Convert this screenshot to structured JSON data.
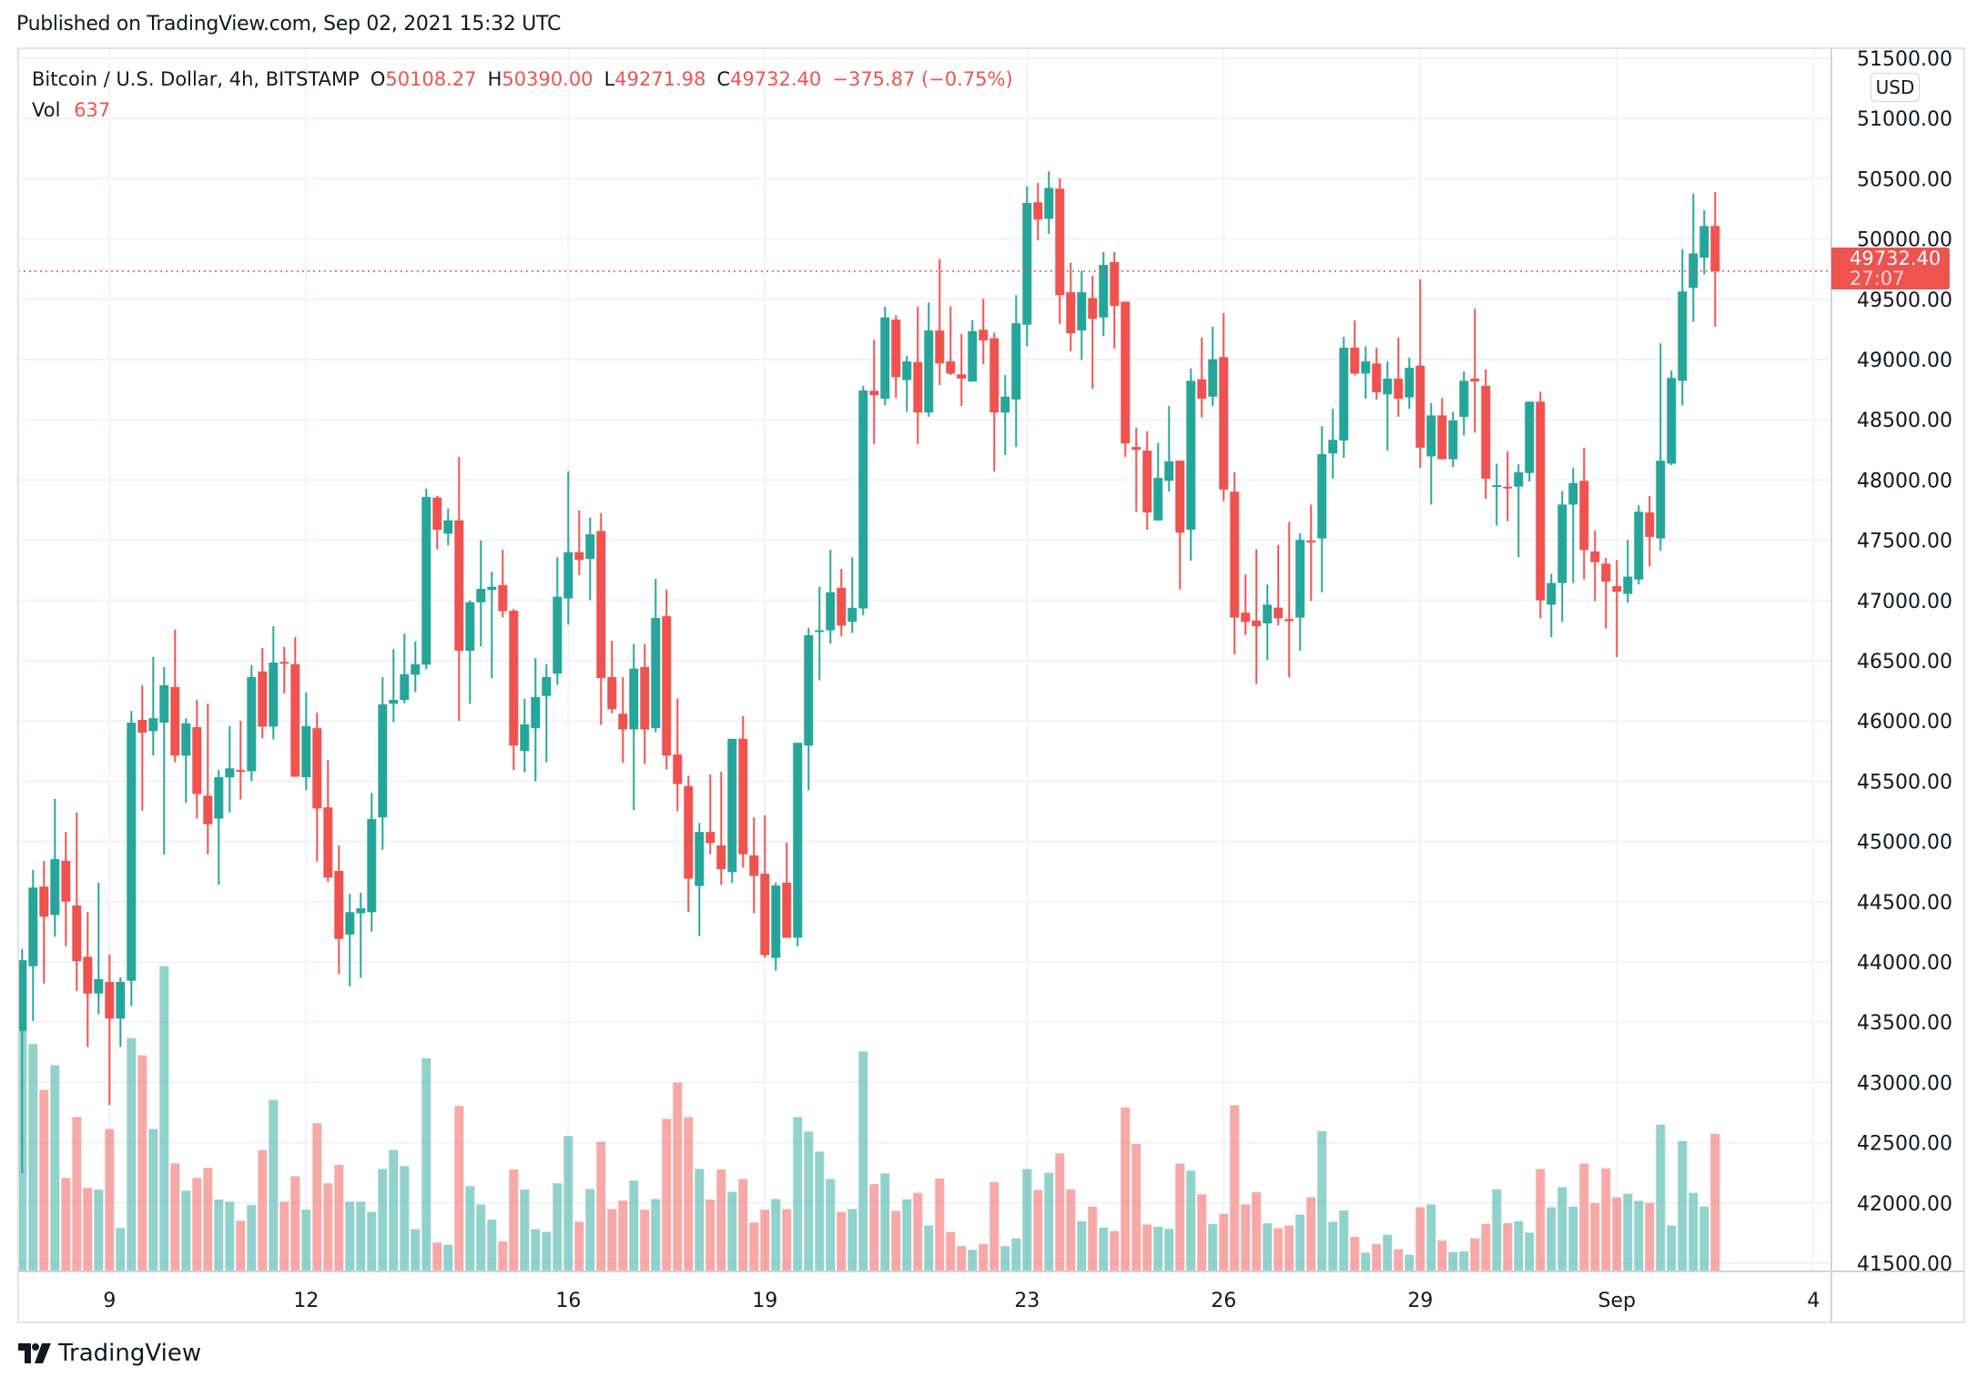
{
  "published": "Published on TradingView.com, Sep 02, 2021 15:32 UTC",
  "legend": {
    "symbol": "Bitcoin / U.S. Dollar, 4h, BITSTAMP",
    "o_label": "O",
    "o_value": "50108.27",
    "h_label": "H",
    "h_value": "50390.00",
    "l_label": "L",
    "l_value": "49271.98",
    "c_label": "C",
    "c_value": "49732.40",
    "change": "−375.87 (−0.75%)",
    "vol_label": "Vol",
    "vol_value": "637"
  },
  "price_axis": {
    "currency": "USD",
    "last_price": "49732.40",
    "countdown": "27:07"
  },
  "footer": {
    "logo_text": "TradingView"
  },
  "colors": {
    "up": "#26a69a",
    "down": "#ef5350",
    "grid": "#f0f3fa",
    "border": "#e0e3eb"
  },
  "chart_data": {
    "type": "candlestick",
    "interval": "4h",
    "ylim": [
      41500,
      51500
    ],
    "y_ticks": [
      "41500.00",
      "42000.00",
      "42500.00",
      "43000.00",
      "43500.00",
      "44000.00",
      "44500.00",
      "45000.00",
      "45500.00",
      "46000.00",
      "46500.00",
      "47000.00",
      "47500.00",
      "48000.00",
      "48500.00",
      "49000.00",
      "49500.00",
      "50000.00",
      "50500.00",
      "51000.00",
      "51500.00"
    ],
    "x_ticks": [
      {
        "label": "9",
        "bar": 8
      },
      {
        "label": "12",
        "bar": 26
      },
      {
        "label": "16",
        "bar": 50
      },
      {
        "label": "19",
        "bar": 68
      },
      {
        "label": "23",
        "bar": 92
      },
      {
        "label": "26",
        "bar": 110
      },
      {
        "label": "29",
        "bar": 128
      },
      {
        "label": "Sep",
        "bar": 146
      },
      {
        "label": "4",
        "bar": 164
      }
    ],
    "grid": true,
    "last_price_line": 49732.4,
    "columns": [
      "open",
      "high",
      "low",
      "close",
      "volume"
    ],
    "ohlcv": [
      [
        43428,
        44108,
        42249,
        44015,
        1117
      ],
      [
        43965,
        44765,
        43511,
        44617,
        1053
      ],
      [
        44626,
        44839,
        43821,
        44376,
        841
      ],
      [
        44390,
        45352,
        44210,
        44853,
        955
      ],
      [
        44839,
        45079,
        44131,
        44501,
        433
      ],
      [
        44469,
        45241,
        43761,
        44006,
        715
      ],
      [
        44043,
        44413,
        43294,
        43738,
        387
      ],
      [
        43738,
        44658,
        43567,
        43858,
        379
      ],
      [
        43835,
        44062,
        42813,
        43530,
        660
      ],
      [
        43530,
        43872,
        43294,
        43835,
        201
      ],
      [
        43844,
        46083,
        43636,
        45986,
        1081
      ],
      [
        46009,
        46296,
        45255,
        45903,
        1001
      ],
      [
        45916,
        46532,
        45713,
        46023,
        660
      ],
      [
        45986,
        46448,
        44890,
        46296,
        1414
      ],
      [
        46282,
        46758,
        45657,
        45713,
        500
      ],
      [
        45713,
        46023,
        45320,
        45981,
        374
      ],
      [
        45949,
        46175,
        45190,
        45394,
        433
      ],
      [
        45380,
        46143,
        44894,
        45144,
        480
      ],
      [
        45190,
        45593,
        44640,
        45533,
        333
      ],
      [
        45533,
        45958,
        45241,
        45607,
        323
      ],
      [
        45593,
        46000,
        45348,
        45583,
        235
      ],
      [
        45583,
        46462,
        45500,
        46365,
        307
      ],
      [
        46411,
        46606,
        45856,
        45953,
        562
      ],
      [
        45953,
        46786,
        45847,
        46485,
        795
      ],
      [
        46490,
        46615,
        46226,
        46476,
        323
      ],
      [
        46471,
        46698,
        45537,
        45537,
        441
      ],
      [
        45533,
        46236,
        45426,
        45958,
        286
      ],
      [
        45940,
        46069,
        44834,
        45274,
        686
      ],
      [
        45283,
        45676,
        44663,
        44700,
        408
      ],
      [
        44756,
        44968,
        43900,
        44191,
        493
      ],
      [
        44228,
        44566,
        43798,
        44413,
        323
      ],
      [
        44404,
        44575,
        43868,
        44446,
        323
      ],
      [
        44413,
        45403,
        44251,
        45186,
        276
      ],
      [
        45200,
        46365,
        44931,
        46138,
        475
      ],
      [
        46143,
        46596,
        45990,
        46175,
        562
      ],
      [
        46175,
        46726,
        46148,
        46388,
        488
      ],
      [
        46384,
        46661,
        46240,
        46471,
        196
      ],
      [
        46467,
        47928,
        46430,
        47859,
        988
      ],
      [
        47854,
        47868,
        47424,
        47586,
        134
      ],
      [
        47554,
        47762,
        47457,
        47665,
        124
      ],
      [
        47665,
        48192,
        46000,
        46582,
        766
      ],
      [
        46582,
        46999,
        46143,
        46985,
        395
      ],
      [
        46985,
        47498,
        46619,
        47096,
        310
      ],
      [
        47087,
        47239,
        46356,
        47114,
        240
      ],
      [
        47128,
        47420,
        46860,
        46911,
        139
      ],
      [
        46915,
        46929,
        45593,
        45796,
        472
      ],
      [
        45750,
        46185,
        45574,
        45972,
        379
      ],
      [
        45940,
        46522,
        45500,
        46199,
        196
      ],
      [
        46208,
        46471,
        45657,
        46365,
        183
      ],
      [
        46393,
        47359,
        46300,
        47031,
        408
      ],
      [
        47017,
        48072,
        46800,
        47401,
        627
      ],
      [
        47401,
        47748,
        47211,
        47336,
        230
      ],
      [
        47345,
        47688,
        47003,
        47549,
        382
      ],
      [
        47577,
        47725,
        45967,
        46356,
        601
      ],
      [
        46365,
        46666,
        46064,
        46097,
        289
      ],
      [
        46060,
        46365,
        45653,
        45930,
        328
      ],
      [
        45930,
        46638,
        45260,
        46434,
        421
      ],
      [
        46448,
        46638,
        45644,
        45930,
        286
      ],
      [
        45940,
        47179,
        45907,
        46855,
        335
      ],
      [
        46869,
        47091,
        45597,
        45713,
        707
      ],
      [
        45722,
        46185,
        45250,
        45477,
        875
      ],
      [
        45459,
        45546,
        44413,
        44691,
        715
      ],
      [
        44631,
        45153,
        44214,
        45079,
        475
      ],
      [
        45079,
        45556,
        44894,
        44987,
        333
      ],
      [
        44968,
        45579,
        44640,
        44769,
        472
      ],
      [
        44746,
        45852,
        44654,
        45852,
        369
      ],
      [
        45852,
        46041,
        44783,
        44894,
        428
      ],
      [
        44885,
        45200,
        44404,
        44714,
        227
      ],
      [
        44732,
        45218,
        44034,
        44057,
        286
      ],
      [
        44034,
        44658,
        43928,
        44635,
        335
      ],
      [
        44658,
        44991,
        44201,
        44201,
        289
      ],
      [
        44201,
        45819,
        44131,
        45819,
        715
      ],
      [
        45796,
        46772,
        45426,
        46712,
        648
      ],
      [
        46744,
        47114,
        46337,
        46753,
        555
      ],
      [
        46753,
        47420,
        46643,
        47068,
        428
      ],
      [
        47105,
        47262,
        46703,
        46791,
        276
      ],
      [
        46823,
        47359,
        46730,
        46939,
        289
      ],
      [
        46934,
        48780,
        46878,
        48743,
        1019
      ],
      [
        48740,
        49164,
        48297,
        48704,
        404
      ],
      [
        48674,
        49439,
        48620,
        49349,
        454
      ],
      [
        49331,
        49367,
        48680,
        48853,
        280
      ],
      [
        48829,
        49032,
        48566,
        48984,
        334
      ],
      [
        48978,
        49439,
        48297,
        48560,
        364
      ],
      [
        48560,
        49474,
        48525,
        49241,
        213
      ],
      [
        49241,
        49833,
        48787,
        48967,
        430
      ],
      [
        48984,
        49439,
        48871,
        48883,
        183
      ],
      [
        48877,
        49211,
        48614,
        48841,
        117
      ],
      [
        48817,
        49325,
        48817,
        49235,
        100
      ],
      [
        49247,
        49504,
        48961,
        49158,
        127
      ],
      [
        49176,
        49223,
        48070,
        48560,
        414
      ],
      [
        48560,
        48871,
        48208,
        48692,
        117
      ],
      [
        48668,
        49534,
        48274,
        49301,
        153
      ],
      [
        49289,
        50436,
        49110,
        50299,
        474
      ],
      [
        50305,
        50466,
        49988,
        50161,
        377
      ],
      [
        50167,
        50562,
        50042,
        50424,
        457
      ],
      [
        50418,
        50502,
        49295,
        49534,
        547
      ],
      [
        49558,
        49803,
        49068,
        49217,
        380
      ],
      [
        49241,
        49737,
        48996,
        49558,
        233
      ],
      [
        49510,
        49695,
        48757,
        49337,
        300
      ],
      [
        49349,
        49892,
        49194,
        49785,
        203
      ],
      [
        49809,
        49892,
        49092,
        49444,
        187
      ],
      [
        49480,
        49480,
        48190,
        48303,
        760
      ],
      [
        48274,
        48435,
        47736,
        48250,
        590
      ],
      [
        48244,
        48405,
        47587,
        47730,
        217
      ],
      [
        47664,
        48309,
        47664,
        48017,
        207
      ],
      [
        47993,
        48614,
        47903,
        48154,
        197
      ],
      [
        48160,
        48160,
        47091,
        47563,
        500
      ],
      [
        47587,
        48925,
        47330,
        48823,
        467
      ],
      [
        48835,
        49182,
        48518,
        48674,
        357
      ],
      [
        48692,
        49271,
        48614,
        49002,
        220
      ],
      [
        49020,
        49385,
        47825,
        47921,
        267
      ],
      [
        47903,
        48064,
        46553,
        46858,
        770
      ],
      [
        46899,
        47216,
        46714,
        46822,
        310
      ],
      [
        46834,
        47425,
        46308,
        46786,
        367
      ],
      [
        46810,
        47132,
        46505,
        46965,
        223
      ],
      [
        46941,
        47461,
        46792,
        46852,
        200
      ],
      [
        46846,
        47652,
        46362,
        46828,
        213
      ],
      [
        46858,
        47557,
        46583,
        47503,
        263
      ],
      [
        47497,
        47796,
        46995,
        47485,
        343
      ],
      [
        47515,
        48447,
        47067,
        48214,
        650
      ],
      [
        48220,
        48590,
        48011,
        48333,
        230
      ],
      [
        48327,
        49188,
        48184,
        49098,
        283
      ],
      [
        49098,
        49325,
        48871,
        48883,
        160
      ],
      [
        48883,
        49110,
        48674,
        48984,
        87
      ],
      [
        48967,
        49098,
        48668,
        48728,
        127
      ],
      [
        48710,
        48984,
        48244,
        48841,
        170
      ],
      [
        48841,
        49182,
        48524,
        48674,
        103
      ],
      [
        48686,
        49014,
        48590,
        48931,
        77
      ],
      [
        48949,
        49665,
        48100,
        48268,
        297
      ],
      [
        48196,
        48638,
        47796,
        48536,
        310
      ],
      [
        48536,
        48680,
        48172,
        48172,
        143
      ],
      [
        48172,
        48566,
        48106,
        48495,
        90
      ],
      [
        48524,
        48901,
        48369,
        48823,
        93
      ],
      [
        48841,
        49421,
        48393,
        48817,
        153
      ],
      [
        48781,
        48919,
        47843,
        48011,
        220
      ],
      [
        47951,
        48136,
        47622,
        47957,
        380
      ],
      [
        47945,
        48238,
        47658,
        47939,
        223
      ],
      [
        47945,
        48130,
        47360,
        48064,
        233
      ],
      [
        48058,
        48650,
        47987,
        48650,
        180
      ],
      [
        48650,
        48734,
        46852,
        47001,
        474
      ],
      [
        46965,
        47222,
        46696,
        47145,
        297
      ],
      [
        47145,
        47909,
        46822,
        47796,
        390
      ],
      [
        47796,
        48100,
        47145,
        47975,
        300
      ],
      [
        47993,
        48268,
        47174,
        47419,
        500
      ],
      [
        47407,
        47581,
        46995,
        47318,
        317
      ],
      [
        47306,
        47353,
        46768,
        47156,
        477
      ],
      [
        47120,
        47336,
        46529,
        47073,
        343
      ],
      [
        47055,
        47503,
        46983,
        47198,
        360
      ],
      [
        47174,
        47790,
        47132,
        47736,
        327
      ],
      [
        47730,
        47867,
        47282,
        47527,
        317
      ],
      [
        47515,
        49134,
        47413,
        48160,
        680
      ],
      [
        48136,
        48907,
        48124,
        48847,
        213
      ],
      [
        48823,
        49916,
        48620,
        49564,
        604
      ],
      [
        49594,
        50376,
        49313,
        49880,
        364
      ],
      [
        49845,
        50239,
        49707,
        50108,
        300
      ],
      [
        50108.27,
        50390,
        49271.98,
        49732.4,
        637
      ]
    ]
  }
}
